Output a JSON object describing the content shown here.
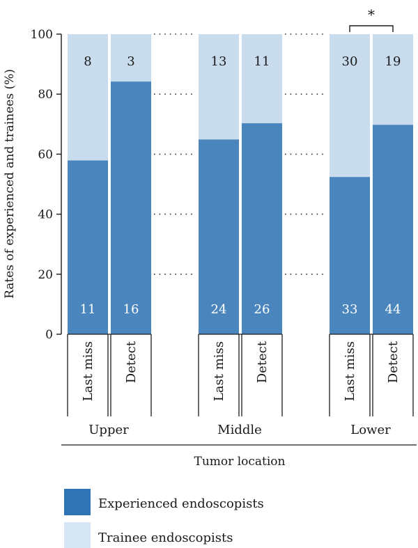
{
  "chart_data": {
    "type": "bar",
    "stacked": true,
    "percent": true,
    "title": "",
    "xlabel": "Tumor location",
    "ylabel": "Rates of experienced and trainees (%)",
    "ylim": [
      0,
      100
    ],
    "yticks": [
      "0",
      "20",
      "40",
      "60",
      "80",
      "100"
    ],
    "grid": "dotted horizontal lines between bar groups",
    "groups": [
      "Upper",
      "Middle",
      "Lower"
    ],
    "categories": [
      "Last miss",
      "Detect"
    ],
    "bars": [
      {
        "group": "Upper",
        "category": "Last miss",
        "experienced": 11,
        "trainee": 8,
        "experienced_pct": 57.9
      },
      {
        "group": "Upper",
        "category": "Detect",
        "experienced": 16,
        "trainee": 3,
        "experienced_pct": 84.2
      },
      {
        "group": "Middle",
        "category": "Last miss",
        "experienced": 24,
        "trainee": 13,
        "experienced_pct": 64.9
      },
      {
        "group": "Middle",
        "category": "Detect",
        "experienced": 26,
        "trainee": 11,
        "experienced_pct": 70.3
      },
      {
        "group": "Lower",
        "category": "Last miss",
        "experienced": 33,
        "trainee": 30,
        "experienced_pct": 52.4
      },
      {
        "group": "Lower",
        "category": "Detect",
        "experienced": 44,
        "trainee": 19,
        "experienced_pct": 69.8
      }
    ],
    "series": [
      {
        "name": "Experienced endoscopists",
        "color": "#4a86bd"
      },
      {
        "name": "Trainee endoscopists",
        "color": "#c9dcee"
      }
    ],
    "legend_placement": "bottom-left",
    "significance": {
      "group": "Lower",
      "label": "*"
    }
  },
  "legend": {
    "experienced_color": "#2f74b5",
    "trainee_color": "#d6e6f4"
  }
}
